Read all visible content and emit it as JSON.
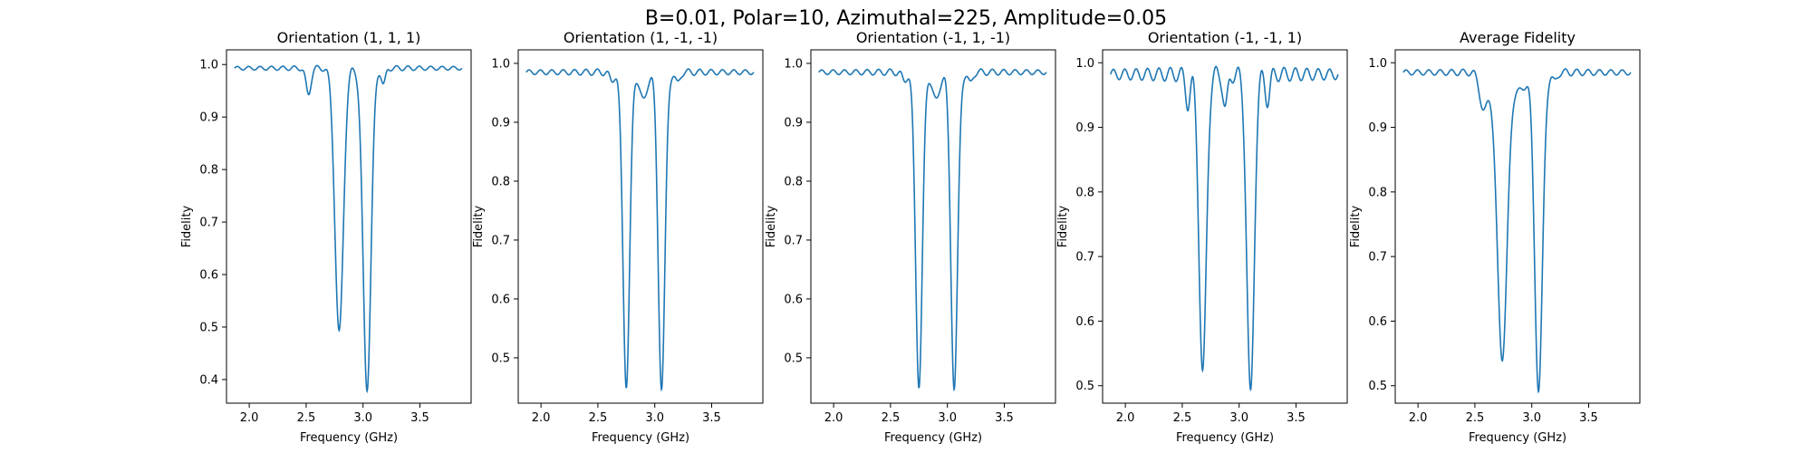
{
  "figure": {
    "suptitle": "B=0.01, Polar=10, Azimuthal=225, Amplitude=0.05"
  },
  "colors": {
    "series": "#1f77b4",
    "background": "#ffffff",
    "axes": "#000000"
  },
  "chart_data": [
    {
      "type": "line",
      "title": "Orientation (1, 1, 1)",
      "xlabel": "Frequency (GHz)",
      "ylabel": "Fidelity",
      "xlim": [
        1.8,
        3.95
      ],
      "ylim": [
        0.355,
        1.028
      ],
      "xticks": [
        "2.0",
        "2.5",
        "3.0",
        "3.5"
      ],
      "yticks": [
        "0.4",
        "0.5",
        "0.6",
        "0.7",
        "0.8",
        "0.9",
        "1.0"
      ],
      "grid": false,
      "x_range": [
        1.87,
        3.87
      ],
      "baseline": 0.993,
      "dips": [
        {
          "center": 2.52,
          "depth": 0.05,
          "width": 0.022
        },
        {
          "center": 2.79,
          "depth": 0.505,
          "width": 0.037
        },
        {
          "center": 3.035,
          "depth": 0.61,
          "width": 0.035
        },
        {
          "center": 3.18,
          "depth": 0.032,
          "width": 0.018
        }
      ],
      "ripple": {
        "amplitude": 0.006,
        "period": 0.1,
        "decay": 0.5
      }
    },
    {
      "type": "line",
      "title": "Orientation (1, -1, -1)",
      "xlabel": "Frequency (GHz)",
      "ylabel": "Fidelity",
      "xlim": [
        1.8,
        3.95
      ],
      "ylim": [
        0.423,
        1.023
      ],
      "xticks": [
        "2.0",
        "2.5",
        "3.0",
        "3.5"
      ],
      "yticks": [
        "0.5",
        "0.6",
        "0.7",
        "0.8",
        "0.9",
        "1.0"
      ],
      "grid": false,
      "x_range": [
        1.87,
        3.87
      ],
      "baseline": 0.985,
      "dips": [
        {
          "center": 2.75,
          "depth": 0.53,
          "width": 0.03
        },
        {
          "center": 3.06,
          "depth": 0.535,
          "width": 0.03
        },
        {
          "center": 2.9,
          "depth": 0.05,
          "width": 0.03
        },
        {
          "center": 2.62,
          "depth": 0.015,
          "width": 0.02
        },
        {
          "center": 3.2,
          "depth": 0.02,
          "width": 0.02
        }
      ],
      "ripple": {
        "amplitude": 0.007,
        "period": 0.1,
        "decay": 0.5
      }
    },
    {
      "type": "line",
      "title": "Orientation (-1, 1, -1)",
      "xlabel": "Frequency (GHz)",
      "ylabel": "Fidelity",
      "xlim": [
        1.8,
        3.95
      ],
      "ylim": [
        0.423,
        1.023
      ],
      "xticks": [
        "2.0",
        "2.5",
        "3.0",
        "3.5"
      ],
      "yticks": [
        "0.5",
        "0.6",
        "0.7",
        "0.8",
        "0.9",
        "1.0"
      ],
      "grid": false,
      "x_range": [
        1.87,
        3.87
      ],
      "baseline": 0.985,
      "dips": [
        {
          "center": 2.75,
          "depth": 0.53,
          "width": 0.03
        },
        {
          "center": 3.06,
          "depth": 0.535,
          "width": 0.03
        },
        {
          "center": 2.9,
          "depth": 0.05,
          "width": 0.03
        },
        {
          "center": 2.62,
          "depth": 0.015,
          "width": 0.02
        },
        {
          "center": 3.2,
          "depth": 0.02,
          "width": 0.02
        }
      ],
      "ripple": {
        "amplitude": 0.007,
        "period": 0.1,
        "decay": 0.5
      }
    },
    {
      "type": "line",
      "title": "Orientation (-1, -1, 1)",
      "xlabel": "Frequency (GHz)",
      "ylabel": "Fidelity",
      "xlim": [
        1.8,
        3.95
      ],
      "ylim": [
        0.473,
        1.02
      ],
      "xticks": [
        "2.0",
        "2.5",
        "3.0",
        "3.5"
      ],
      "yticks": [
        "0.5",
        "0.6",
        "0.7",
        "0.8",
        "0.9",
        "1.0"
      ],
      "grid": false,
      "x_range": [
        1.87,
        3.87
      ],
      "baseline": 0.982,
      "dips": [
        {
          "center": 2.55,
          "depth": 0.045,
          "width": 0.02
        },
        {
          "center": 2.68,
          "depth": 0.465,
          "width": 0.032
        },
        {
          "center": 2.88,
          "depth": 0.055,
          "width": 0.02
        },
        {
          "center": 3.1,
          "depth": 0.5,
          "width": 0.032
        },
        {
          "center": 3.25,
          "depth": 0.04,
          "width": 0.02
        }
      ],
      "ripple": {
        "amplitude": 0.013,
        "period": 0.1,
        "decay": 0.7
      }
    },
    {
      "type": "line",
      "title": "Average Fidelity",
      "xlabel": "Frequency (GHz)",
      "ylabel": "Fidelity",
      "xlim": [
        1.8,
        3.95
      ],
      "ylim": [
        0.473,
        1.02
      ],
      "xticks": [
        "2.0",
        "2.5",
        "3.0",
        "3.5"
      ],
      "yticks": [
        "0.5",
        "0.6",
        "0.7",
        "0.8",
        "0.9",
        "1.0"
      ],
      "grid": false,
      "x_range": [
        1.87,
        3.87
      ],
      "baseline": 0.985,
      "dips": [
        {
          "center": 2.74,
          "depth": 0.44,
          "width": 0.045
        },
        {
          "center": 3.06,
          "depth": 0.49,
          "width": 0.035
        },
        {
          "center": 2.58,
          "depth": 0.06,
          "width": 0.035
        },
        {
          "center": 2.9,
          "depth": 0.03,
          "width": 0.04
        },
        {
          "center": 3.2,
          "depth": 0.015,
          "width": 0.02
        }
      ],
      "ripple": {
        "amplitude": 0.007,
        "period": 0.1,
        "decay": 0.5
      }
    }
  ]
}
